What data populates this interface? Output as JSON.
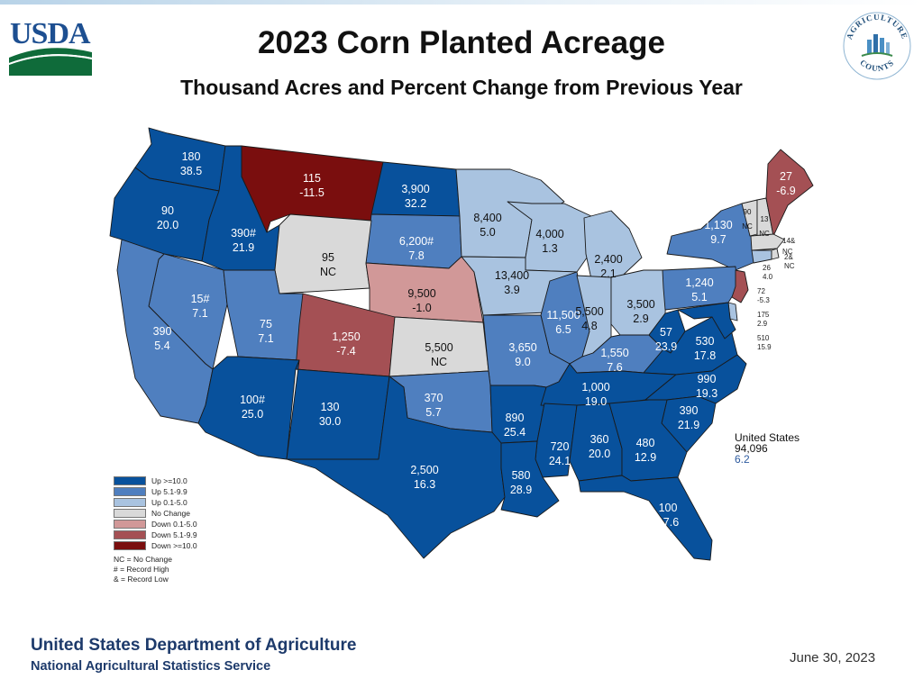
{
  "header": {
    "title": "2023 Corn Planted Acreage",
    "subtitle": "Thousand Acres and Percent Change from Previous Year",
    "left_logo_text": "USDA",
    "right_logo_top": "AGRICULTURE",
    "right_logo_bottom": "COUNTS"
  },
  "colors": {
    "up10": "#08519c",
    "up5": "#4f7fbf",
    "up0": "#a9c3e0",
    "nochange": "#d9d9d9",
    "down0": "#d19898",
    "down5": "#a45054",
    "down10": "#7a0e0e"
  },
  "legend": {
    "items": [
      {
        "label": "Up >=10.0",
        "color": "#08519c"
      },
      {
        "label": "Up 5.1-9.9",
        "color": "#4f7fbf"
      },
      {
        "label": "Up 0.1-5.0",
        "color": "#a9c3e0"
      },
      {
        "label": "No Change",
        "color": "#d9d9d9"
      },
      {
        "label": "Down 0.1-5.0",
        "color": "#d19898"
      },
      {
        "label": "Down 5.1-9.9",
        "color": "#a45054"
      },
      {
        "label": "Down >=10.0",
        "color": "#7a0e0e"
      }
    ],
    "notes": [
      "NC = No Change",
      "# = Record High",
      "& = Record Low"
    ]
  },
  "states": [
    {
      "id": "WA",
      "acres": "180",
      "change": "38.5"
    },
    {
      "id": "OR",
      "acres": "90",
      "change": "20.0"
    },
    {
      "id": "ID",
      "acres": "390#",
      "change": "21.9"
    },
    {
      "id": "MT",
      "acres": "115",
      "change": "-11.5"
    },
    {
      "id": "ND",
      "acres": "3,900",
      "change": "32.2"
    },
    {
      "id": "SD",
      "acres": "6,200#",
      "change": "7.8"
    },
    {
      "id": "MN",
      "acres": "8,400",
      "change": "5.0"
    },
    {
      "id": "WI",
      "acres": "4,000",
      "change": "1.3"
    },
    {
      "id": "MI",
      "acres": "2,400",
      "change": "2.1"
    },
    {
      "id": "NY",
      "acres": "1,130",
      "change": "9.7"
    },
    {
      "id": "VT",
      "acres": "90",
      "change": "NC"
    },
    {
      "id": "NH",
      "acres": "13",
      "change": "NC"
    },
    {
      "id": "ME",
      "acres": "27",
      "change": "-6.9"
    },
    {
      "id": "WY",
      "acres": "95",
      "change": "NC"
    },
    {
      "id": "NE",
      "acres": "9,500",
      "change": "-1.0"
    },
    {
      "id": "IA",
      "acres": "13,400",
      "change": "3.9"
    },
    {
      "id": "IL",
      "acres": "11,500",
      "change": "6.5"
    },
    {
      "id": "IN",
      "acres": "5,500",
      "change": "4.8"
    },
    {
      "id": "OH",
      "acres": "3,500",
      "change": "2.9"
    },
    {
      "id": "PA",
      "acres": "1,240",
      "change": "5.1"
    },
    {
      "id": "NV",
      "acres": "15#",
      "change": "7.1"
    },
    {
      "id": "UT",
      "acres": "75",
      "change": "7.1"
    },
    {
      "id": "CO",
      "acres": "1,250",
      "change": "-7.4"
    },
    {
      "id": "KS",
      "acres": "5,500",
      "change": "NC"
    },
    {
      "id": "MO",
      "acres": "3,650",
      "change": "9.0"
    },
    {
      "id": "KY",
      "acres": "1,550",
      "change": "7.6"
    },
    {
      "id": "WV",
      "acres": "57",
      "change": "23.9"
    },
    {
      "id": "VA",
      "acres": "530",
      "change": "17.8"
    },
    {
      "id": "CA",
      "acres": "390",
      "change": "5.4"
    },
    {
      "id": "AZ",
      "acres": "100#",
      "change": "25.0"
    },
    {
      "id": "NM",
      "acres": "130",
      "change": "30.0"
    },
    {
      "id": "OK",
      "acres": "370",
      "change": "5.7"
    },
    {
      "id": "AR",
      "acres": "890",
      "change": "25.4"
    },
    {
      "id": "TN",
      "acres": "1,000",
      "change": "19.0"
    },
    {
      "id": "NC",
      "acres": "990",
      "change": "19.3"
    },
    {
      "id": "SC",
      "acres": "390",
      "change": "21.9"
    },
    {
      "id": "TX",
      "acres": "2,500",
      "change": "16.3"
    },
    {
      "id": "MS",
      "acres": "720",
      "change": "24.1"
    },
    {
      "id": "AL",
      "acres": "360",
      "change": "20.0"
    },
    {
      "id": "GA",
      "acres": "480",
      "change": "12.9"
    },
    {
      "id": "LA",
      "acres": "580",
      "change": "28.9"
    },
    {
      "id": "FL",
      "acres": "100",
      "change": "17.6"
    },
    {
      "id": "MA",
      "acres": "14&",
      "change": "NC"
    },
    {
      "id": "CT",
      "acres": "26",
      "change": "4.0"
    },
    {
      "id": "RI",
      "acres": "2&",
      "change": "NC"
    },
    {
      "id": "NJ",
      "acres": "72",
      "change": "-5.3"
    },
    {
      "id": "DE",
      "acres": "175",
      "change": "2.9"
    },
    {
      "id": "MD",
      "acres": "510",
      "change": "15.9"
    }
  ],
  "us_total": {
    "label": "United States",
    "acres": "94,096",
    "change": "6.2"
  },
  "footer": {
    "department": "United States Department of Agriculture",
    "service": "National Agricultural Statistics Service",
    "date": "June 30, 2023"
  }
}
